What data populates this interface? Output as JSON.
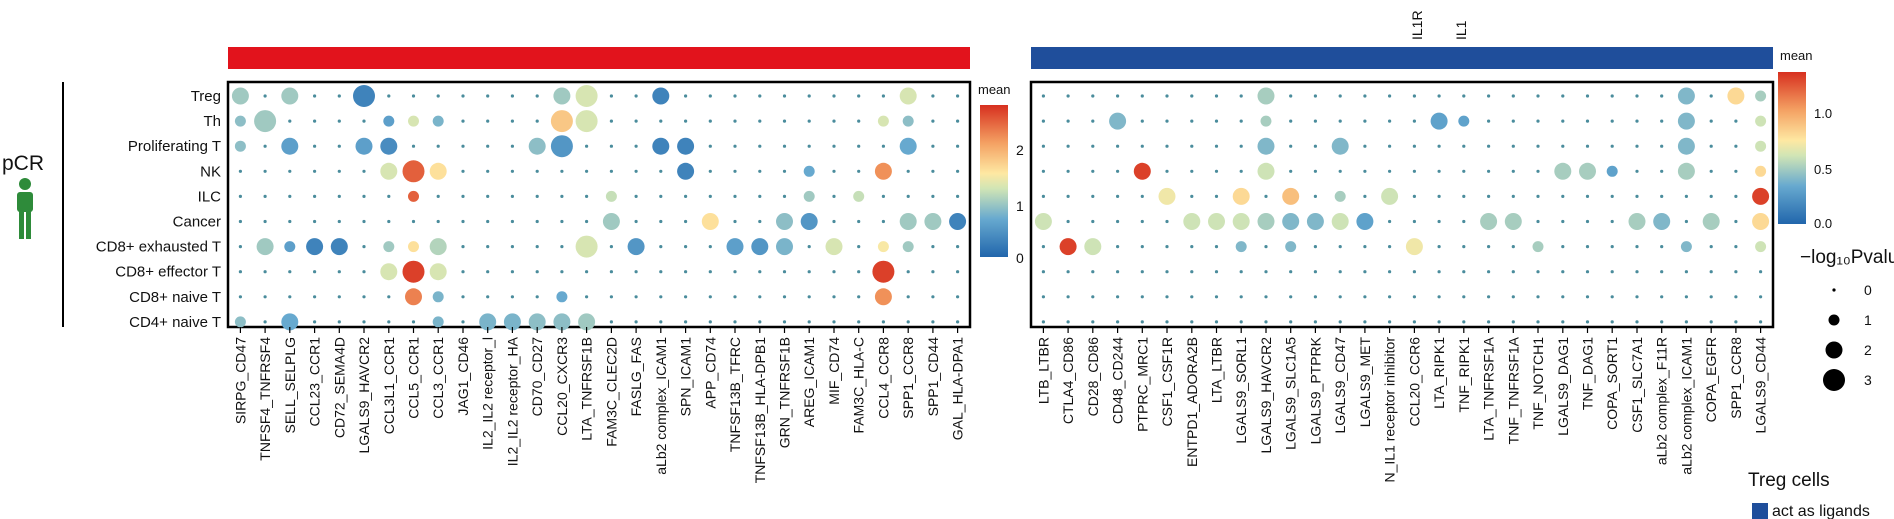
{
  "group_label": "pCR",
  "legends": {
    "mean_left": {
      "title": "mean",
      "ticks": [
        "2",
        "1",
        "0"
      ]
    },
    "mean_right": {
      "title": "mean",
      "ticks": [
        "1.0",
        "0.5",
        "0.0"
      ]
    },
    "pvalue": {
      "title": "−log₁₀Pvalu",
      "levels": [
        "0",
        "1",
        "2",
        "3"
      ]
    },
    "role": {
      "title": "Treg cells",
      "item": "act as ligands"
    }
  },
  "top_cut_labels": [
    "IL1R",
    "IL1"
  ],
  "colors": {
    "red_bar": "#e2131c",
    "blue_bar": "#1f4e9b",
    "person_icon": "#2e8b3a"
  },
  "chart_data": [
    {
      "type": "scatter",
      "panel": "left",
      "rows": [
        "Treg",
        "Th",
        "Proliferating T",
        "NK",
        "ILC",
        "Cancer",
        "CD8+ exhausted T",
        "CD8+ effector T",
        "CD8+ naive T",
        "CD4+ naive T"
      ],
      "columns": [
        "SIRPG_CD47",
        "TNFSF4_TNFRSF4",
        "SELL_SELPLG",
        "CCL23_CCR1",
        "CD72_SEMA4D",
        "LGALS9_HAVCR2",
        "CCL3L1_CCR1",
        "CCL5_CCR1",
        "CCL3_CCR1",
        "JAG1_CD46",
        "IL2_IL2 receptor_l",
        "IL2_IL2 receptor_HA",
        "CD70_CD27",
        "CCL20_CXCR3",
        "LTA_TNFRSF1B",
        "FAM3C_CLEC2D",
        "FASLG_FAS",
        "aLb2 complex_ICAM1",
        "SPN_ICAM1",
        "APP_CD74",
        "TNFSF13B_TFRC",
        "TNFSF13B_HLA-DPB1",
        "GRN_TNFRSF1B",
        "AREG_ICAM1",
        "MIF_CD74",
        "FAM3C_HLA-C",
        "CCL4_CCR8",
        "SPP1_CCR8",
        "SPP1_CD44",
        "GAL_HLA-DPA1"
      ],
      "color_range": [
        0,
        2.8
      ],
      "points": [
        {
          "row": "Treg",
          "column": "SIRPG_CD47",
          "mean": 1.0,
          "neglog10p": 2
        },
        {
          "row": "Treg",
          "column": "SELL_SELPLG",
          "mean": 1.0,
          "neglog10p": 2
        },
        {
          "row": "Treg",
          "column": "LGALS9_HAVCR2",
          "mean": 0.3,
          "neglog10p": 3
        },
        {
          "row": "Treg",
          "column": "CCL20_CXCR3",
          "mean": 1.0,
          "neglog10p": 2
        },
        {
          "row": "Treg",
          "column": "LTA_TNFRSF1B",
          "mean": 1.3,
          "neglog10p": 3
        },
        {
          "row": "Treg",
          "column": "aLb2 complex_ICAM1",
          "mean": 0.3,
          "neglog10p": 2
        },
        {
          "row": "Treg",
          "column": "SPP1_CCR8",
          "mean": 1.3,
          "neglog10p": 2
        },
        {
          "row": "Th",
          "column": "SIRPG_CD47",
          "mean": 0.9,
          "neglog10p": 1
        },
        {
          "row": "Th",
          "column": "TNFSF4_TNFRSF4",
          "mean": 1.0,
          "neglog10p": 3
        },
        {
          "row": "Th",
          "column": "CCL3L1_CCR1",
          "mean": 0.6,
          "neglog10p": 1
        },
        {
          "row": "Th",
          "column": "CCL5_CCR1",
          "mean": 1.3,
          "neglog10p": 1
        },
        {
          "row": "Th",
          "column": "CCL3_CCR1",
          "mean": 0.8,
          "neglog10p": 1
        },
        {
          "row": "Th",
          "column": "CCL20_CXCR3",
          "mean": 1.8,
          "neglog10p": 3
        },
        {
          "row": "Th",
          "column": "LTA_TNFRSF1B",
          "mean": 1.3,
          "neglog10p": 3
        },
        {
          "row": "Th",
          "column": "CCL4_CCR8",
          "mean": 1.3,
          "neglog10p": 1
        },
        {
          "row": "Th",
          "column": "SPP1_CCR8",
          "mean": 0.9,
          "neglog10p": 1
        },
        {
          "row": "Proliferating T",
          "column": "SIRPG_CD47",
          "mean": 0.9,
          "neglog10p": 1
        },
        {
          "row": "Proliferating T",
          "column": "SELL_SELPLG",
          "mean": 0.6,
          "neglog10p": 2
        },
        {
          "row": "Proliferating T",
          "column": "LGALS9_HAVCR2",
          "mean": 0.6,
          "neglog10p": 2
        },
        {
          "row": "Proliferating T",
          "column": "CCL3L1_CCR1",
          "mean": 0.4,
          "neglog10p": 2
        },
        {
          "row": "Proliferating T",
          "column": "CD70_CD27",
          "mean": 0.9,
          "neglog10p": 2
        },
        {
          "row": "Proliferating T",
          "column": "CCL20_CXCR3",
          "mean": 0.5,
          "neglog10p": 3
        },
        {
          "row": "Proliferating T",
          "column": "aLb2 complex_ICAM1",
          "mean": 0.3,
          "neglog10p": 2
        },
        {
          "row": "Proliferating T",
          "column": "SPN_ICAM1",
          "mean": 0.3,
          "neglog10p": 2
        },
        {
          "row": "Proliferating T",
          "column": "SPP1_CCR8",
          "mean": 0.7,
          "neglog10p": 2
        },
        {
          "row": "NK",
          "column": "CCL3L1_CCR1",
          "mean": 1.3,
          "neglog10p": 2
        },
        {
          "row": "NK",
          "column": "CCL5_CCR1",
          "mean": 2.5,
          "neglog10p": 3
        },
        {
          "row": "NK",
          "column": "CCL3_CCR1",
          "mean": 1.6,
          "neglog10p": 2
        },
        {
          "row": "NK",
          "column": "SPN_ICAM1",
          "mean": 0.3,
          "neglog10p": 2
        },
        {
          "row": "NK",
          "column": "AREG_ICAM1",
          "mean": 0.7,
          "neglog10p": 1
        },
        {
          "row": "NK",
          "column": "CCL4_CCR8",
          "mean": 2.2,
          "neglog10p": 2
        },
        {
          "row": "ILC",
          "column": "CCL5_CCR1",
          "mean": 2.5,
          "neglog10p": 1
        },
        {
          "row": "ILC",
          "column": "FAM3C_CLEC2D",
          "mean": 1.2,
          "neglog10p": 1
        },
        {
          "row": "ILC",
          "column": "AREG_ICAM1",
          "mean": 1.0,
          "neglog10p": 1
        },
        {
          "row": "ILC",
          "column": "FAM3C_HLA-C",
          "mean": 1.2,
          "neglog10p": 1
        },
        {
          "row": "Cancer",
          "column": "FAM3C_CLEC2D",
          "mean": 1.0,
          "neglog10p": 2
        },
        {
          "row": "Cancer",
          "column": "APP_CD74",
          "mean": 1.6,
          "neglog10p": 2
        },
        {
          "row": "Cancer",
          "column": "GRN_TNFRSF1B",
          "mean": 0.9,
          "neglog10p": 2
        },
        {
          "row": "Cancer",
          "column": "AREG_ICAM1",
          "mean": 0.5,
          "neglog10p": 2
        },
        {
          "row": "Cancer",
          "column": "SPP1_CCR8",
          "mean": 1.0,
          "neglog10p": 2
        },
        {
          "row": "Cancer",
          "column": "SPP1_CD44",
          "mean": 1.0,
          "neglog10p": 2
        },
        {
          "row": "Cancer",
          "column": "GAL_HLA-DPA1",
          "mean": 0.3,
          "neglog10p": 2
        },
        {
          "row": "CD8+ exhausted T",
          "column": "TNFSF4_TNFRSF4",
          "mean": 1.0,
          "neglog10p": 2
        },
        {
          "row": "CD8+ exhausted T",
          "column": "SELL_SELPLG",
          "mean": 0.6,
          "neglog10p": 1
        },
        {
          "row": "CD8+ exhausted T",
          "column": "CCL23_CCR1",
          "mean": 0.3,
          "neglog10p": 2
        },
        {
          "row": "CD8+ exhausted T",
          "column": "CD72_SEMA4D",
          "mean": 0.3,
          "neglog10p": 2
        },
        {
          "row": "CD8+ exhausted T",
          "column": "CCL3L1_CCR1",
          "mean": 1.0,
          "neglog10p": 1
        },
        {
          "row": "CD8+ exhausted T",
          "column": "CCL5_CCR1",
          "mean": 1.6,
          "neglog10p": 1
        },
        {
          "row": "CD8+ exhausted T",
          "column": "CCL3_CCR1",
          "mean": 1.1,
          "neglog10p": 2
        },
        {
          "row": "CD8+ exhausted T",
          "column": "LTA_TNFRSF1B",
          "mean": 1.3,
          "neglog10p": 3
        },
        {
          "row": "CD8+ exhausted T",
          "column": "FASLG_FAS",
          "mean": 0.5,
          "neglog10p": 2
        },
        {
          "row": "CD8+ exhausted T",
          "column": "MIF_CD74",
          "mean": 1.3,
          "neglog10p": 2
        },
        {
          "row": "CD8+ exhausted T",
          "column": "TNFSF13B_TFRC",
          "mean": 0.6,
          "neglog10p": 2
        },
        {
          "row": "CD8+ exhausted T",
          "column": "TNFSF13B_HLA-DPB1",
          "mean": 0.5,
          "neglog10p": 2
        },
        {
          "row": "CD8+ exhausted T",
          "column": "GRN_TNFRSF1B",
          "mean": 0.8,
          "neglog10p": 2
        },
        {
          "row": "CD8+ exhausted T",
          "column": "CCL4_CCR8",
          "mean": 1.5,
          "neglog10p": 1
        },
        {
          "row": "CD8+ exhausted T",
          "column": "SPP1_CCR8",
          "mean": 1.0,
          "neglog10p": 1
        },
        {
          "row": "CD8+ effector T",
          "column": "CCL3L1_CCR1",
          "mean": 1.3,
          "neglog10p": 2
        },
        {
          "row": "CD8+ effector T",
          "column": "CCL5_CCR1",
          "mean": 2.7,
          "neglog10p": 3
        },
        {
          "row": "CD8+ effector T",
          "column": "CCL3_CCR1",
          "mean": 1.3,
          "neglog10p": 2
        },
        {
          "row": "CD8+ effector T",
          "column": "CCL4_CCR8",
          "mean": 2.7,
          "neglog10p": 3
        },
        {
          "row": "CD8+ naive T",
          "column": "CCL5_CCR1",
          "mean": 2.3,
          "neglog10p": 2
        },
        {
          "row": "CD8+ naive T",
          "column": "CCL3_CCR1",
          "mean": 0.8,
          "neglog10p": 1
        },
        {
          "row": "CD8+ naive T",
          "column": "CCL20_CXCR3",
          "mean": 0.7,
          "neglog10p": 1
        },
        {
          "row": "CD8+ naive T",
          "column": "CCL4_CCR8",
          "mean": 2.2,
          "neglog10p": 2
        },
        {
          "row": "CD4+ naive T",
          "column": "SIRPG_CD47",
          "mean": 0.9,
          "neglog10p": 1
        },
        {
          "row": "CD4+ naive T",
          "column": "SELL_SELPLG",
          "mean": 0.7,
          "neglog10p": 2
        },
        {
          "row": "CD4+ naive T",
          "column": "IL2_IL2 receptor_l",
          "mean": 0.8,
          "neglog10p": 2
        },
        {
          "row": "CD4+ naive T",
          "column": "IL2_IL2 receptor_HA",
          "mean": 0.8,
          "neglog10p": 2
        },
        {
          "row": "CD4+ naive T",
          "column": "CD70_CD27",
          "mean": 0.9,
          "neglog10p": 2
        },
        {
          "row": "CD4+ naive T",
          "column": "CCL20_CXCR3",
          "mean": 0.9,
          "neglog10p": 2
        },
        {
          "row": "CD4+ naive T",
          "column": "LTA_TNFRSF1B",
          "mean": 1.0,
          "neglog10p": 2
        },
        {
          "row": "CD4+ naive T",
          "column": "CCL3_CCR1",
          "mean": 0.8,
          "neglog10p": 1
        }
      ]
    },
    {
      "type": "scatter",
      "panel": "right",
      "rows": [
        "Treg",
        "Th",
        "Proliferating T",
        "NK",
        "ILC",
        "Cancer",
        "CD8+ exhausted T",
        "CD8+ effector T",
        "CD8+ naive T",
        "CD4+ naive T"
      ],
      "columns": [
        "LTB_LTBR",
        "CTLA4_CD86",
        "CD28_CD86",
        "CD48_CD244",
        "PTPRC_MRC1",
        "CSF1_CSF1R",
        "ENTPD1_ADORA2B",
        "LTA_LTBR",
        "LGALS9_SORL1",
        "LGALS9_HAVCR2",
        "LGALS9_SLC1A5",
        "LGALS9_PTPRK",
        "LGALS9_CD47",
        "LGALS9_MET",
        "N_IL1 receptor inhibitor",
        "CCL20_CCR6",
        "LTA_RIPK1",
        "TNF_RIPK1",
        "LTA_TNFRSF1A",
        "TNF_TNFRSF1A",
        "TNF_NOTCH1",
        "LGALS9_DAG1",
        "TNF_DAG1",
        "COPA_SORT1",
        "CSF1_SLC7A1",
        "aLb2 complex_F11R",
        "aLb2 complex_ICAM1",
        "COPA_EGFR",
        "SPP1_CCR8",
        "LGALS9_CD44"
      ],
      "color_range": [
        0,
        1.35
      ],
      "points": [
        {
          "row": "Treg",
          "column": "LGALS9_HAVCR2",
          "mean": 0.5,
          "neglog10p": 2
        },
        {
          "row": "Treg",
          "column": "aLb2 complex_ICAM1",
          "mean": 0.4,
          "neglog10p": 2
        },
        {
          "row": "Treg",
          "column": "SPP1_CCR8",
          "mean": 0.8,
          "neglog10p": 2
        },
        {
          "row": "Treg",
          "column": "LGALS9_CD44",
          "mean": 0.5,
          "neglog10p": 1
        },
        {
          "row": "Th",
          "column": "CD48_CD244",
          "mean": 0.4,
          "neglog10p": 2
        },
        {
          "row": "Th",
          "column": "LGALS9_HAVCR2",
          "mean": 0.5,
          "neglog10p": 1
        },
        {
          "row": "Th",
          "column": "LTA_RIPK1",
          "mean": 0.3,
          "neglog10p": 2
        },
        {
          "row": "Th",
          "column": "TNF_RIPK1",
          "mean": 0.3,
          "neglog10p": 1
        },
        {
          "row": "Th",
          "column": "aLb2 complex_ICAM1",
          "mean": 0.4,
          "neglog10p": 2
        },
        {
          "row": "Th",
          "column": "LGALS9_CD44",
          "mean": 0.6,
          "neglog10p": 1
        },
        {
          "row": "Proliferating T",
          "column": "LGALS9_HAVCR2",
          "mean": 0.4,
          "neglog10p": 2
        },
        {
          "row": "Proliferating T",
          "column": "LGALS9_CD47",
          "mean": 0.4,
          "neglog10p": 2
        },
        {
          "row": "Proliferating T",
          "column": "aLb2 complex_ICAM1",
          "mean": 0.4,
          "neglog10p": 2
        },
        {
          "row": "Proliferating T",
          "column": "LGALS9_CD44",
          "mean": 0.6,
          "neglog10p": 1
        },
        {
          "row": "NK",
          "column": "PTPRC_MRC1",
          "mean": 1.3,
          "neglog10p": 2
        },
        {
          "row": "NK",
          "column": "LGALS9_HAVCR2",
          "mean": 0.6,
          "neglog10p": 2
        },
        {
          "row": "NK",
          "column": "LGALS9_DAG1",
          "mean": 0.5,
          "neglog10p": 2
        },
        {
          "row": "NK",
          "column": "TNF_DAG1",
          "mean": 0.5,
          "neglog10p": 2
        },
        {
          "row": "NK",
          "column": "COPA_SORT1",
          "mean": 0.3,
          "neglog10p": 1
        },
        {
          "row": "NK",
          "column": "aLb2 complex_ICAM1",
          "mean": 0.5,
          "neglog10p": 2
        },
        {
          "row": "NK",
          "column": "LGALS9_CD44",
          "mean": 0.8,
          "neglog10p": 1
        },
        {
          "row": "ILC",
          "column": "CSF1_CSF1R",
          "mean": 0.7,
          "neglog10p": 2
        },
        {
          "row": "ILC",
          "column": "LGALS9_SORL1",
          "mean": 0.8,
          "neglog10p": 2
        },
        {
          "row": "ILC",
          "column": "LGALS9_SLC1A5",
          "mean": 0.9,
          "neglog10p": 2
        },
        {
          "row": "ILC",
          "column": "LGALS9_CD47",
          "mean": 0.5,
          "neglog10p": 1
        },
        {
          "row": "ILC",
          "column": "N_IL1 receptor inhibitor",
          "mean": 0.6,
          "neglog10p": 2
        },
        {
          "row": "ILC",
          "column": "LGALS9_CD44",
          "mean": 1.3,
          "neglog10p": 2
        },
        {
          "row": "Cancer",
          "column": "LTB_LTBR",
          "mean": 0.6,
          "neglog10p": 2
        },
        {
          "row": "Cancer",
          "column": "ENTPD1_ADORA2B",
          "mean": 0.6,
          "neglog10p": 2
        },
        {
          "row": "Cancer",
          "column": "LTA_LTBR",
          "mean": 0.6,
          "neglog10p": 2
        },
        {
          "row": "Cancer",
          "column": "LGALS9_SORL1",
          "mean": 0.6,
          "neglog10p": 2
        },
        {
          "row": "Cancer",
          "column": "LGALS9_HAVCR2",
          "mean": 0.5,
          "neglog10p": 2
        },
        {
          "row": "Cancer",
          "column": "LGALS9_SLC1A5",
          "mean": 0.4,
          "neglog10p": 2
        },
        {
          "row": "Cancer",
          "column": "LGALS9_PTPRK",
          "mean": 0.4,
          "neglog10p": 2
        },
        {
          "row": "Cancer",
          "column": "LGALS9_CD47",
          "mean": 0.6,
          "neglog10p": 2
        },
        {
          "row": "Cancer",
          "column": "LGALS9_MET",
          "mean": 0.3,
          "neglog10p": 2
        },
        {
          "row": "Cancer",
          "column": "LTA_TNFRSF1A",
          "mean": 0.5,
          "neglog10p": 2
        },
        {
          "row": "Cancer",
          "column": "TNF_TNFRSF1A",
          "mean": 0.5,
          "neglog10p": 2
        },
        {
          "row": "Cancer",
          "column": "CSF1_SLC7A1",
          "mean": 0.5,
          "neglog10p": 2
        },
        {
          "row": "Cancer",
          "column": "aLb2 complex_F11R",
          "mean": 0.4,
          "neglog10p": 2
        },
        {
          "row": "Cancer",
          "column": "COPA_EGFR",
          "mean": 0.5,
          "neglog10p": 2
        },
        {
          "row": "Cancer",
          "column": "LGALS9_CD44",
          "mean": 0.8,
          "neglog10p": 2
        },
        {
          "row": "CD8+ exhausted T",
          "column": "CTLA4_CD86",
          "mean": 1.3,
          "neglog10p": 2
        },
        {
          "row": "CD8+ exhausted T",
          "column": "CD28_CD86",
          "mean": 0.6,
          "neglog10p": 2
        },
        {
          "row": "CD8+ exhausted T",
          "column": "LGALS9_SORL1",
          "mean": 0.4,
          "neglog10p": 1
        },
        {
          "row": "CD8+ exhausted T",
          "column": "LGALS9_SLC1A5",
          "mean": 0.4,
          "neglog10p": 1
        },
        {
          "row": "CD8+ exhausted T",
          "column": "CCL20_CCR6",
          "mean": 0.7,
          "neglog10p": 2
        },
        {
          "row": "CD8+ exhausted T",
          "column": "TNF_NOTCH1",
          "mean": 0.5,
          "neglog10p": 1
        },
        {
          "row": "CD8+ exhausted T",
          "column": "aLb2 complex_ICAM1",
          "mean": 0.4,
          "neglog10p": 1
        },
        {
          "row": "CD8+ exhausted T",
          "column": "LGALS9_CD44",
          "mean": 0.6,
          "neglog10p": 1
        }
      ]
    }
  ]
}
